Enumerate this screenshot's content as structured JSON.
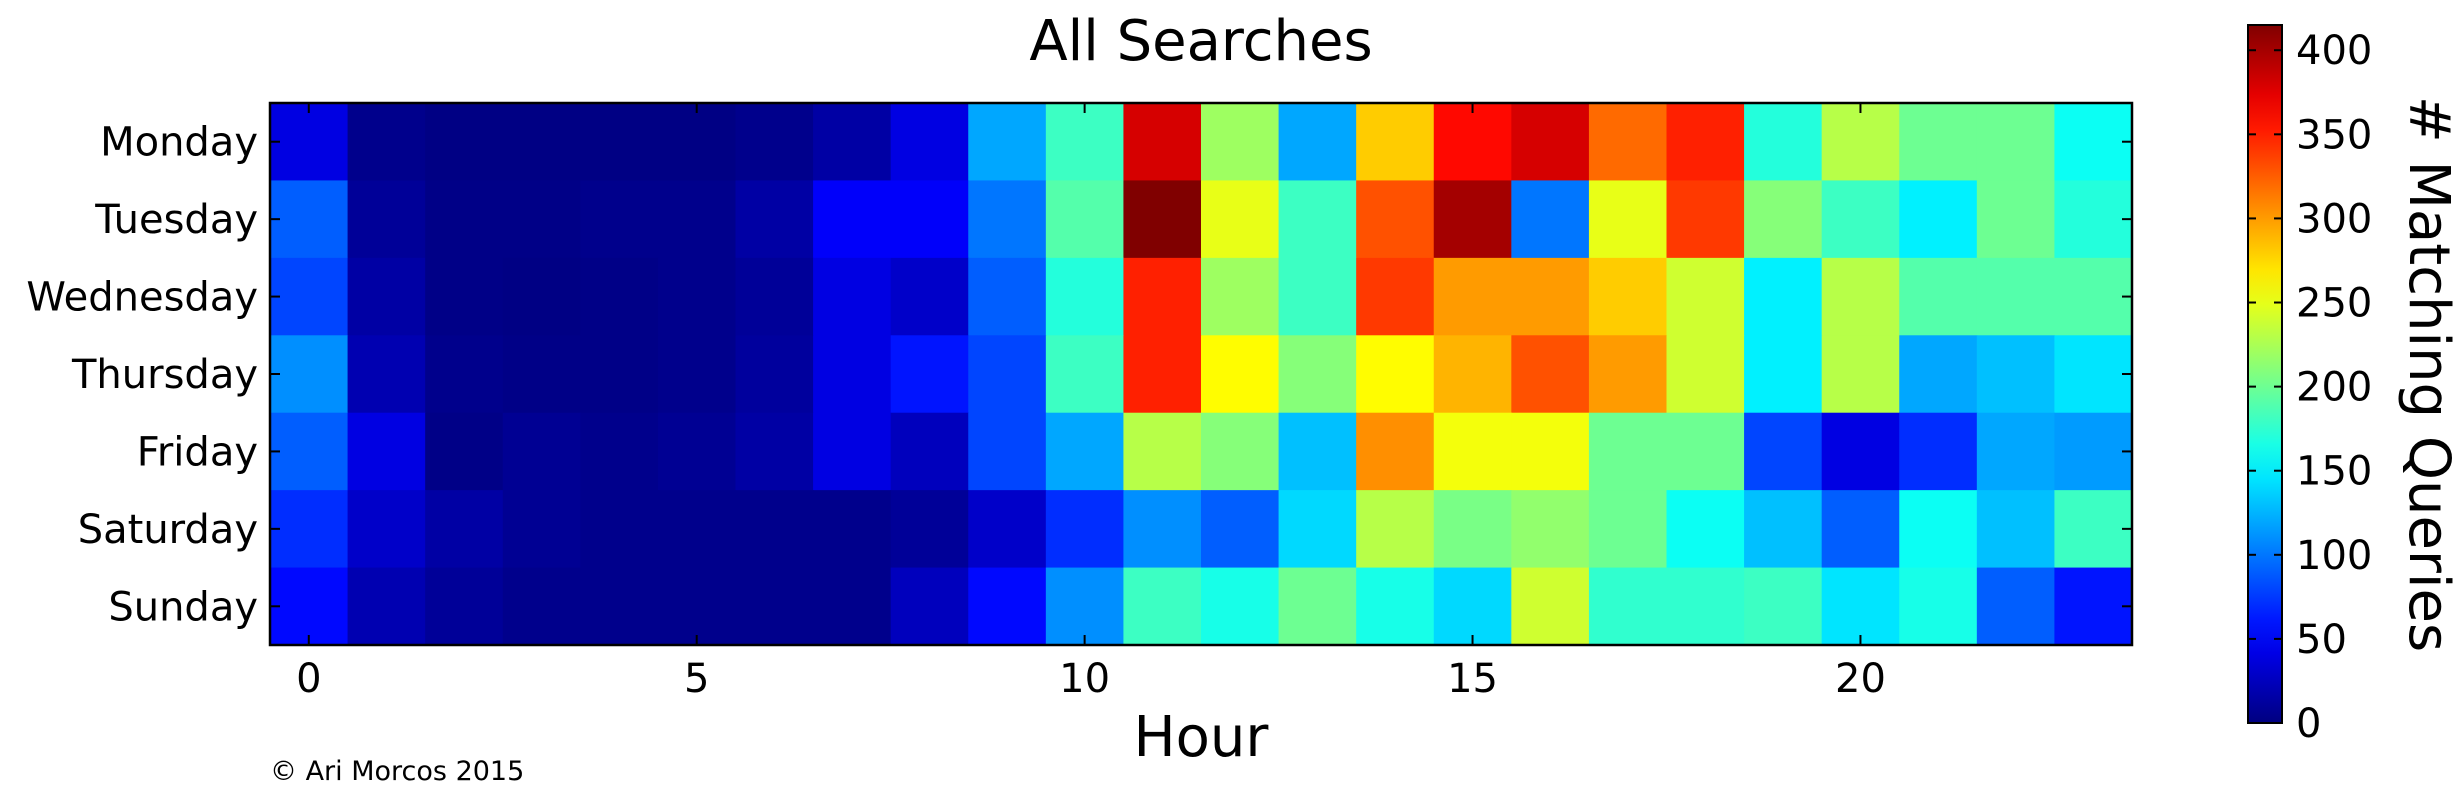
{
  "chart_data": {
    "type": "heatmap",
    "title": "All Searches",
    "xlabel": "Hour",
    "ylabel": "",
    "x_ticks": [
      0,
      5,
      10,
      15,
      20
    ],
    "x_range": [
      -0.5,
      23.5
    ],
    "rows": [
      "Monday",
      "Tuesday",
      "Wednesday",
      "Thursday",
      "Friday",
      "Saturday",
      "Sunday"
    ],
    "columns": [
      0,
      1,
      2,
      3,
      4,
      5,
      6,
      7,
      8,
      9,
      10,
      11,
      12,
      13,
      14,
      15,
      16,
      17,
      18,
      19,
      20,
      21,
      22,
      23
    ],
    "values": [
      [
        40,
        5,
        2,
        2,
        2,
        2,
        5,
        15,
        40,
        120,
        180,
        380,
        220,
        120,
        280,
        360,
        380,
        320,
        350,
        170,
        230,
        200,
        200,
        160
      ],
      [
        90,
        10,
        3,
        3,
        5,
        5,
        15,
        50,
        50,
        100,
        190,
        415,
        250,
        180,
        330,
        400,
        100,
        250,
        340,
        210,
        180,
        150,
        200,
        170
      ],
      [
        80,
        15,
        3,
        2,
        3,
        5,
        10,
        40,
        30,
        90,
        170,
        350,
        220,
        180,
        340,
        300,
        300,
        280,
        240,
        150,
        230,
        190,
        190,
        190
      ],
      [
        110,
        20,
        5,
        3,
        3,
        5,
        12,
        40,
        60,
        80,
        180,
        350,
        260,
        210,
        260,
        290,
        330,
        300,
        240,
        150,
        230,
        120,
        130,
        145
      ],
      [
        90,
        40,
        3,
        8,
        5,
        8,
        15,
        40,
        25,
        80,
        120,
        230,
        210,
        130,
        305,
        255,
        255,
        200,
        200,
        80,
        40,
        70,
        120,
        115
      ],
      [
        70,
        30,
        15,
        8,
        5,
        5,
        5,
        5,
        10,
        30,
        70,
        110,
        90,
        140,
        230,
        205,
        215,
        200,
        160,
        130,
        90,
        160,
        130,
        180
      ],
      [
        55,
        20,
        10,
        5,
        5,
        5,
        5,
        5,
        25,
        55,
        110,
        180,
        165,
        200,
        165,
        140,
        240,
        175,
        175,
        180,
        145,
        165,
        90,
        60
      ]
    ],
    "colormap": "jet",
    "colorbar": {
      "label": "# Matching Queries",
      "range": [
        0,
        415
      ],
      "ticks": [
        0,
        50,
        100,
        150,
        200,
        250,
        300,
        350,
        400
      ]
    },
    "grid": false,
    "legend": "none"
  },
  "footer": {
    "copyright": "© Ari Morcos  2015"
  }
}
